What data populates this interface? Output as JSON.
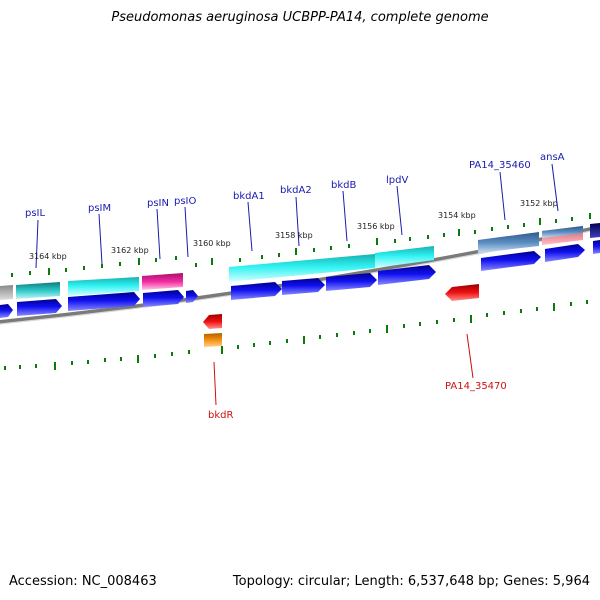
{
  "title": "Pseudomonas aeruginosa UCBPP-PA14, complete genome",
  "footer": {
    "accession": "Accession: NC_008463",
    "topology": "Topology: circular; Length: 6,537,648 bp; Genes: 5,964"
  },
  "colors": {
    "cds": "#0a0ae8",
    "gene_teal": "#1aa7a7",
    "gene_cyan": "#22f0f0",
    "gene_magenta": "#f0209a",
    "gene_steel": "#4a7ab0",
    "gene_salmon": "#f07a8a",
    "gene_navy": "#0a0a80",
    "reverse_red": "#ee1111",
    "reverse_orange": "#f09010",
    "tick_green": "#0a7a0a",
    "label_forward": "#1a1ab0",
    "label_reverse": "#cc1111",
    "backbone": "#808080"
  },
  "scale_labels": [
    "3164 kbp",
    "3162 kbp",
    "3160 kbp",
    "3158 kbp",
    "3156 kbp",
    "3154 kbp",
    "3152 kbp"
  ],
  "forward_gene_labels": [
    "psIL",
    "psIM",
    "psIN",
    "psIO",
    "bkdA1",
    "bkdA2",
    "bkdB",
    "lpdV",
    "PA14_35460",
    "ansA"
  ],
  "reverse_gene_labels": [
    "bkdR",
    "PA14_35470"
  ]
}
